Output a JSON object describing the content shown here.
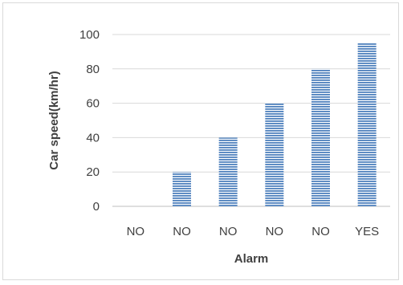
{
  "chart_data": {
    "type": "bar",
    "title": "",
    "xlabel": "Alarm",
    "ylabel": "Car speed(km/hr)",
    "categories": [
      "NO",
      "NO",
      "NO",
      "NO",
      "NO",
      "YES"
    ],
    "values": [
      0,
      20,
      40,
      60,
      80,
      95
    ],
    "ylim": [
      0,
      100
    ],
    "yticks": [
      "0",
      "20",
      "40",
      "60",
      "80",
      "100"
    ],
    "grid": true,
    "legend": "none",
    "bar_color": "#4f81bd",
    "bar_stripe_color": "#ffffff",
    "gridline_color": "#d9d9d9",
    "axis_color": "#bfbfbf"
  }
}
